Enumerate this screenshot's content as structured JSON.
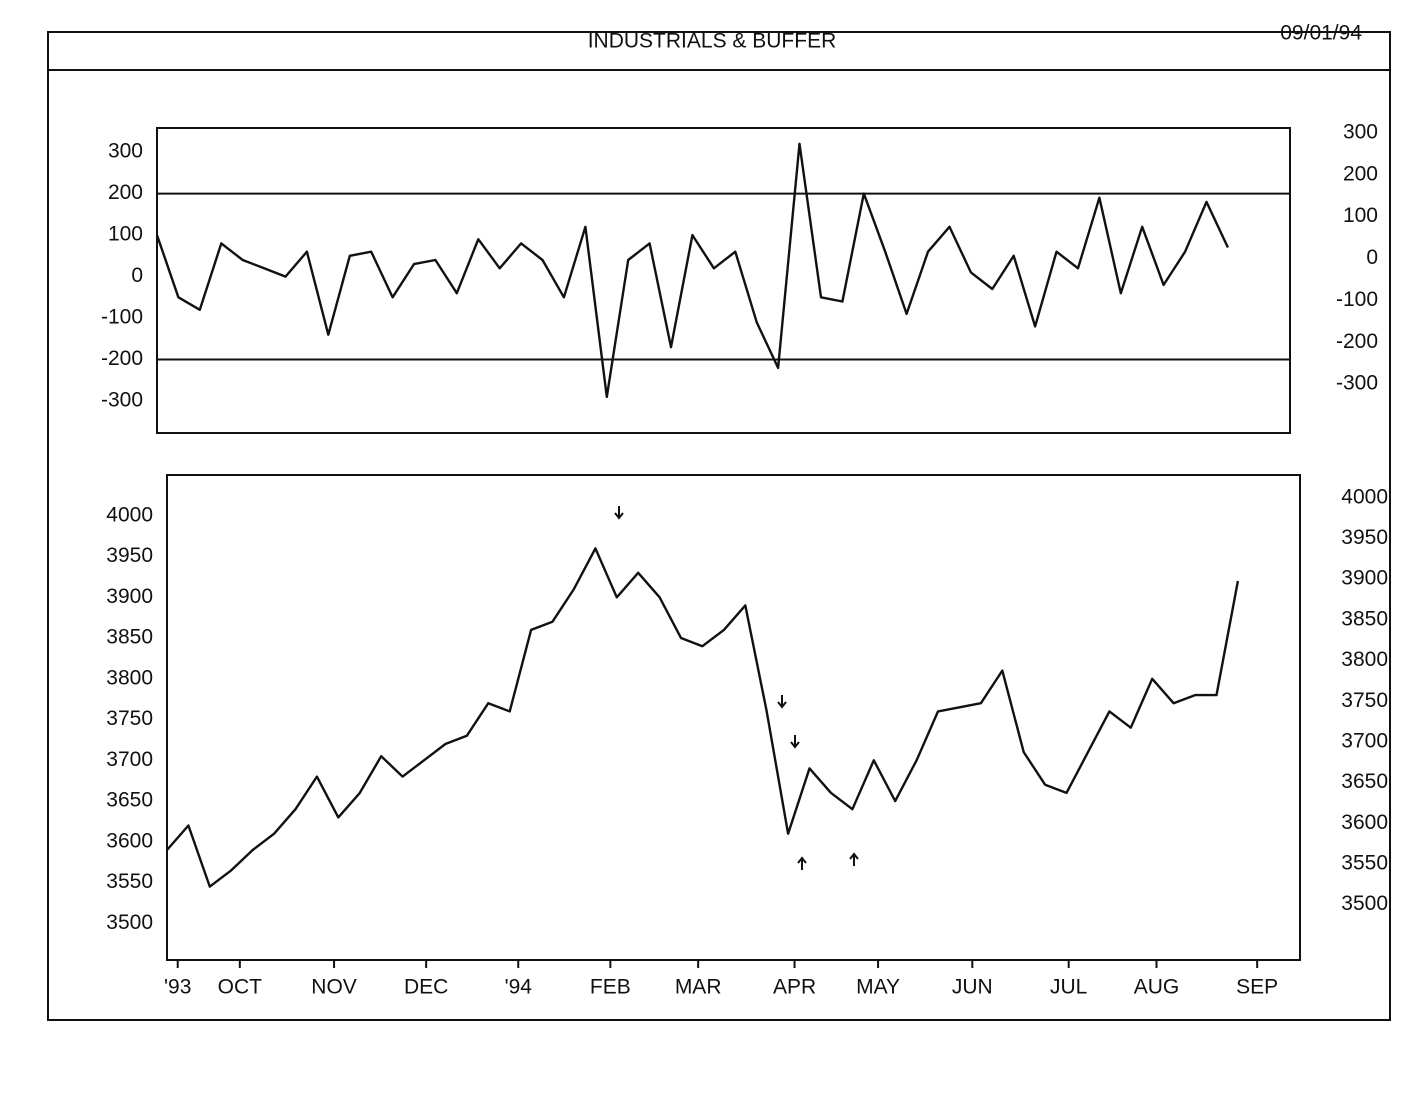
{
  "header": {
    "title": "INDUSTRIALS & BUFFER",
    "date": "09/01/94"
  },
  "chart_data": [
    {
      "type": "line",
      "x": [
        0,
        1,
        2,
        3,
        4,
        5,
        6,
        7,
        8,
        9,
        10,
        11,
        12,
        13,
        14,
        15,
        16,
        17,
        18,
        19,
        20,
        21,
        22,
        23,
        24,
        25,
        26,
        27,
        28,
        29,
        30,
        31,
        32,
        33,
        34,
        35,
        36,
        37,
        38,
        39,
        40,
        41,
        42,
        43,
        44,
        45,
        46,
        47,
        48,
        49,
        50
      ],
      "series": [
        {
          "color": "#111111",
          "values": [
            100,
            -50,
            -80,
            80,
            40,
            20,
            0,
            60,
            -140,
            50,
            60,
            -50,
            30,
            40,
            -40,
            90,
            20,
            80,
            40,
            -50,
            120,
            -290,
            40,
            80,
            -170,
            100,
            20,
            60,
            -110,
            -220,
            320,
            -50,
            -60,
            200,
            60,
            -90,
            60,
            120,
            10,
            -30,
            50,
            -120,
            60,
            20,
            190,
            -40,
            120,
            -20,
            60,
            180,
            70
          ]
        }
      ],
      "xlim": [
        0,
        52.9
      ],
      "ylim": [
        -377,
        358
      ],
      "yticks": [
        300,
        200,
        100,
        0,
        -100,
        -200,
        -300
      ],
      "y2lim": [
        -417,
        312
      ],
      "y2ticks": [
        300,
        200,
        100,
        0,
        -100,
        -200,
        -300
      ],
      "reference_lines": [
        200,
        -200
      ]
    },
    {
      "type": "line",
      "x": [
        0,
        1,
        2,
        3,
        4,
        5,
        6,
        7,
        8,
        9,
        10,
        11,
        12,
        13,
        14,
        15,
        16,
        17,
        18,
        19,
        20,
        21,
        22,
        23,
        24,
        25,
        26,
        27,
        28,
        29,
        30,
        31,
        32,
        33,
        34,
        35,
        36,
        37,
        38,
        39,
        40,
        41,
        42,
        43,
        44,
        45,
        46,
        47,
        48,
        49,
        50
      ],
      "series": [
        {
          "color": "#111111",
          "values": [
            3590,
            3620,
            3545,
            3565,
            3590,
            3610,
            3640,
            3680,
            3630,
            3660,
            3705,
            3680,
            3700,
            3720,
            3730,
            3770,
            3760,
            3860,
            3870,
            3910,
            3960,
            3900,
            3930,
            3900,
            3850,
            3840,
            3860,
            3890,
            3760,
            3610,
            3690,
            3660,
            3640,
            3700,
            3650,
            3700,
            3760,
            3765,
            3770,
            3810,
            3710,
            3670,
            3660,
            3710,
            3760,
            3740,
            3800,
            3770,
            3780,
            3780,
            3920
          ]
        }
      ],
      "xlim": [
        0,
        52.9
      ],
      "xticks": [
        {
          "value": 0.5,
          "label": "'93"
        },
        {
          "value": 3.4,
          "label": "OCT"
        },
        {
          "value": 7.8,
          "label": "NOV"
        },
        {
          "value": 12.1,
          "label": "DEC"
        },
        {
          "value": 16.4,
          "label": "'94"
        },
        {
          "value": 20.7,
          "label": "FEB"
        },
        {
          "value": 24.8,
          "label": "MAR"
        },
        {
          "value": 29.3,
          "label": "APR"
        },
        {
          "value": 33.2,
          "label": "MAY"
        },
        {
          "value": 37.6,
          "label": "JUN"
        },
        {
          "value": 42.1,
          "label": "JUL"
        },
        {
          "value": 46.2,
          "label": "AUG"
        },
        {
          "value": 50.9,
          "label": "SEP"
        }
      ],
      "ylim": [
        3455,
        4050
      ],
      "yticks": [
        4000,
        3950,
        3900,
        3850,
        3800,
        3750,
        3700,
        3650,
        3600,
        3550,
        3500
      ],
      "y2lim": [
        3432,
        4028
      ],
      "y2ticks": [
        4000,
        3950,
        3900,
        3850,
        3800,
        3750,
        3700,
        3650,
        3600,
        3550,
        3500
      ]
    }
  ]
}
